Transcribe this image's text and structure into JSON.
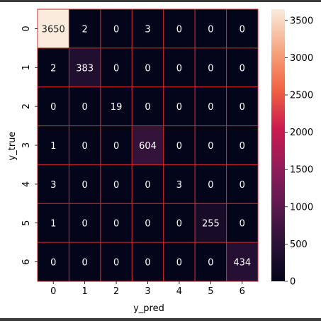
{
  "chart_data": {
    "type": "heatmap",
    "xlabel": "y_pred",
    "ylabel": "y_true",
    "x_categories": [
      "0",
      "1",
      "2",
      "3",
      "4",
      "5",
      "6"
    ],
    "y_categories": [
      "0",
      "1",
      "2",
      "3",
      "4",
      "5",
      "6"
    ],
    "matrix": [
      [
        3650,
        2,
        0,
        3,
        0,
        0,
        0
      ],
      [
        2,
        383,
        0,
        0,
        0,
        0,
        0
      ],
      [
        0,
        0,
        19,
        0,
        0,
        0,
        0
      ],
      [
        1,
        0,
        0,
        604,
        0,
        0,
        0
      ],
      [
        3,
        0,
        0,
        0,
        3,
        0,
        0
      ],
      [
        1,
        0,
        0,
        0,
        0,
        255,
        0
      ],
      [
        0,
        0,
        0,
        0,
        0,
        0,
        434
      ]
    ],
    "colorbar": {
      "min": 0,
      "max": 3650,
      "ticks": [
        0,
        500,
        1000,
        1500,
        2000,
        2500,
        3000,
        3500
      ],
      "colormap": "rocket"
    },
    "cell_border_color": "#d62728",
    "grid": false
  }
}
